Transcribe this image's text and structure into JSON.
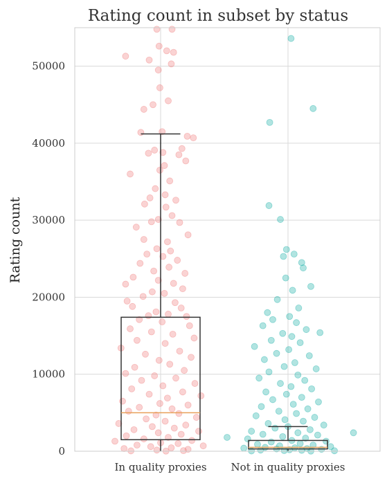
{
  "chart_data": {
    "type": "scatter",
    "title": "Rating count in subset by status",
    "xlabel": "",
    "ylabel": "Rating count",
    "ylim": [
      0,
      55000
    ],
    "yticks": [
      0,
      10000,
      20000,
      30000,
      40000,
      50000
    ],
    "grid": true,
    "categories": [
      "In quality proxies",
      "Not in quality proxies"
    ],
    "colors": {
      "In quality proxies": "#f08080",
      "Not in quality proxies": "#20b2aa",
      "box": "#333333",
      "median": "#e8a05a"
    },
    "boxes": [
      {
        "category": "In quality proxies",
        "q1": 1500,
        "median": 5000,
        "q3": 17400,
        "whisker_low": 0,
        "whisker_high": 41200
      },
      {
        "category": "Not in quality proxies",
        "q1": 300,
        "median": 500,
        "q3": 1400,
        "whisker_low": 0,
        "whisker_high": 3200
      }
    ],
    "series": [
      {
        "name": "In quality proxies",
        "points": [
          [
            -0.46,
            51300
          ],
          [
            -0.05,
            54800
          ],
          [
            0.15,
            54800
          ],
          [
            -0.02,
            52600
          ],
          [
            0.08,
            52000
          ],
          [
            0.17,
            51800
          ],
          [
            -0.15,
            50800
          ],
          [
            -0.03,
            49500
          ],
          [
            0.14,
            50300
          ],
          [
            -0.01,
            47200
          ],
          [
            0.1,
            45500
          ],
          [
            -0.1,
            45000
          ],
          [
            -0.22,
            44400
          ],
          [
            -0.26,
            41400
          ],
          [
            0.02,
            41500
          ],
          [
            0.35,
            40900
          ],
          [
            0.43,
            40700
          ],
          [
            -0.08,
            39100
          ],
          [
            0.03,
            38800
          ],
          [
            0.28,
            39300
          ],
          [
            -0.16,
            38700
          ],
          [
            0.24,
            38500
          ],
          [
            0.33,
            37700
          ],
          [
            0.05,
            37100
          ],
          [
            -0.01,
            36500
          ],
          [
            -0.4,
            36000
          ],
          [
            0.12,
            35100
          ],
          [
            -0.07,
            34100
          ],
          [
            0.06,
            33300
          ],
          [
            -0.14,
            32900
          ],
          [
            0.2,
            32600
          ],
          [
            -0.21,
            32100
          ],
          [
            0.07,
            31700
          ],
          [
            0.15,
            30600
          ],
          [
            -0.03,
            30100
          ],
          [
            -0.32,
            29100
          ],
          [
            -0.12,
            29800
          ],
          [
            0.25,
            29700
          ],
          [
            0.36,
            28100
          ],
          [
            -0.22,
            27500
          ],
          [
            0.09,
            27200
          ],
          [
            -0.05,
            26300
          ],
          [
            0.13,
            26000
          ],
          [
            -0.18,
            25600
          ],
          [
            0.03,
            25300
          ],
          [
            0.22,
            24800
          ],
          [
            -0.27,
            24400
          ],
          [
            0.11,
            23900
          ],
          [
            -0.09,
            23400
          ],
          [
            0.32,
            23100
          ],
          [
            -0.36,
            22600
          ],
          [
            -0.03,
            22200
          ],
          [
            0.17,
            21800
          ],
          [
            -0.46,
            21700
          ],
          [
            0.29,
            21100
          ],
          [
            -0.11,
            20700
          ],
          [
            0.05,
            20500
          ],
          [
            -0.23,
            20100
          ],
          [
            -0.44,
            19500
          ],
          [
            0.19,
            19300
          ],
          [
            -0.37,
            18800
          ],
          [
            0.27,
            18600
          ],
          [
            -0.06,
            18100
          ],
          [
            0.1,
            17800
          ],
          [
            -0.16,
            17600
          ],
          [
            0.34,
            17500
          ],
          [
            -0.28,
            17100
          ],
          [
            0.02,
            16800
          ],
          [
            0.38,
            16300
          ],
          [
            -0.4,
            15900
          ],
          [
            -0.12,
            15500
          ],
          [
            0.16,
            15200
          ],
          [
            0.44,
            14700
          ],
          [
            -0.31,
            14400
          ],
          [
            0.06,
            14000
          ],
          [
            -0.52,
            13400
          ],
          [
            0.25,
            13000
          ],
          [
            -0.2,
            12600
          ],
          [
            0.4,
            12200
          ],
          [
            -0.02,
            11800
          ],
          [
            0.12,
            11300
          ],
          [
            -0.34,
            10900
          ],
          [
            0.31,
            10500
          ],
          [
            -0.46,
            10100
          ],
          [
            -0.08,
            9800
          ],
          [
            0.2,
            9500
          ],
          [
            -0.25,
            9200
          ],
          [
            0.45,
            8800
          ],
          [
            0.03,
            8500
          ],
          [
            -0.38,
            8100
          ],
          [
            0.29,
            7700
          ],
          [
            -0.15,
            7400
          ],
          [
            0.53,
            7200
          ],
          [
            0.09,
            6900
          ],
          [
            -0.5,
            6500
          ],
          [
            -0.01,
            6200
          ],
          [
            0.36,
            6000
          ],
          [
            -0.28,
            5700
          ],
          [
            0.15,
            5500
          ],
          [
            -0.42,
            5200
          ],
          [
            0.24,
            4900
          ],
          [
            -0.06,
            4700
          ],
          [
            0.47,
            4400
          ],
          [
            -0.19,
            4200
          ],
          [
            0.06,
            3900
          ],
          [
            -0.55,
            3600
          ],
          [
            0.33,
            3400
          ],
          [
            -0.11,
            3200
          ],
          [
            0.18,
            3000
          ],
          [
            -0.35,
            2800
          ],
          [
            0.5,
            2600
          ],
          [
            -0.03,
            2400
          ],
          [
            0.27,
            2200
          ],
          [
            -0.45,
            2000
          ],
          [
            0.1,
            1800
          ],
          [
            -0.22,
            1600
          ],
          [
            0.41,
            1400
          ],
          [
            -0.6,
            1300
          ],
          [
            0.0,
            1100
          ],
          [
            0.23,
            1000
          ],
          [
            -0.31,
            800
          ],
          [
            0.56,
            700
          ],
          [
            -0.13,
            600
          ],
          [
            0.14,
            450
          ],
          [
            -0.48,
            350
          ],
          [
            0.36,
            250
          ],
          [
            -0.05,
            150
          ],
          [
            0.3,
            80
          ],
          [
            -0.39,
            50
          ],
          [
            0.07,
            20
          ]
        ]
      },
      {
        "name": "Not in quality proxies",
        "points": [
          [
            0.04,
            53600
          ],
          [
            0.33,
            44500
          ],
          [
            -0.24,
            42700
          ],
          [
            -0.25,
            31900
          ],
          [
            -0.1,
            30100
          ],
          [
            -0.02,
            26200
          ],
          [
            0.08,
            25600
          ],
          [
            -0.06,
            25300
          ],
          [
            0.18,
            24500
          ],
          [
            0.2,
            23800
          ],
          [
            -0.03,
            22500
          ],
          [
            0.3,
            21400
          ],
          [
            0.06,
            20900
          ],
          [
            -0.14,
            19700
          ],
          [
            0.14,
            18600
          ],
          [
            -0.27,
            18000
          ],
          [
            0.02,
            17500
          ],
          [
            -0.2,
            17100
          ],
          [
            0.11,
            16700
          ],
          [
            -0.33,
            16300
          ],
          [
            0.24,
            15800
          ],
          [
            -0.07,
            15300
          ],
          [
            0.42,
            15400
          ],
          [
            0.05,
            14900
          ],
          [
            -0.22,
            14400
          ],
          [
            0.16,
            14100
          ],
          [
            -0.44,
            13600
          ],
          [
            0.01,
            13200
          ],
          [
            -0.15,
            12700
          ],
          [
            0.28,
            12400
          ],
          [
            -0.31,
            11900
          ],
          [
            0.09,
            11500
          ],
          [
            -0.05,
            11000
          ],
          [
            0.37,
            10700
          ],
          [
            -0.25,
            10300
          ],
          [
            0.13,
            9900
          ],
          [
            -0.38,
            9500
          ],
          [
            0.22,
            9200
          ],
          [
            -0.1,
            8800
          ],
          [
            0.04,
            8400
          ],
          [
            0.31,
            8100
          ],
          [
            -0.29,
            7700
          ],
          [
            -0.02,
            7400
          ],
          [
            0.18,
            7000
          ],
          [
            -0.2,
            6700
          ],
          [
            0.4,
            6400
          ],
          [
            0.07,
            6100
          ],
          [
            -0.35,
            5800
          ],
          [
            0.26,
            5500
          ],
          [
            -0.12,
            5200
          ],
          [
            0.11,
            4900
          ],
          [
            -0.42,
            4600
          ],
          [
            0.35,
            4400
          ],
          [
            -0.04,
            4100
          ],
          [
            0.2,
            3900
          ],
          [
            -0.26,
            3600
          ],
          [
            0.47,
            3400
          ],
          [
            0.0,
            3200
          ],
          [
            -0.17,
            3000
          ],
          [
            0.29,
            2800
          ],
          [
            -0.48,
            2600
          ],
          [
            0.13,
            2400
          ],
          [
            -0.33,
            2200
          ],
          [
            0.39,
            2100
          ],
          [
            -0.07,
            1900
          ],
          [
            0.23,
            1700
          ],
          [
            -0.53,
            1600
          ],
          [
            0.05,
            1400
          ],
          [
            0.5,
            1300
          ],
          [
            -0.22,
            1200
          ],
          [
            0.16,
            1000
          ],
          [
            -0.4,
            900
          ],
          [
            0.33,
            800
          ],
          [
            -0.11,
            700
          ],
          [
            0.56,
            600
          ],
          [
            -0.3,
            500
          ],
          [
            0.09,
            450
          ],
          [
            -0.58,
            400
          ],
          [
            0.25,
            350
          ],
          [
            -0.15,
            300
          ],
          [
            0.44,
            250
          ],
          [
            0.02,
            200
          ],
          [
            -0.36,
            150
          ],
          [
            0.18,
            120
          ],
          [
            -0.05,
            90
          ],
          [
            0.61,
            60
          ],
          [
            -0.48,
            40
          ],
          [
            0.3,
            20
          ],
          [
            0.86,
            2400
          ],
          [
            -0.8,
            1800
          ]
        ]
      }
    ]
  }
}
